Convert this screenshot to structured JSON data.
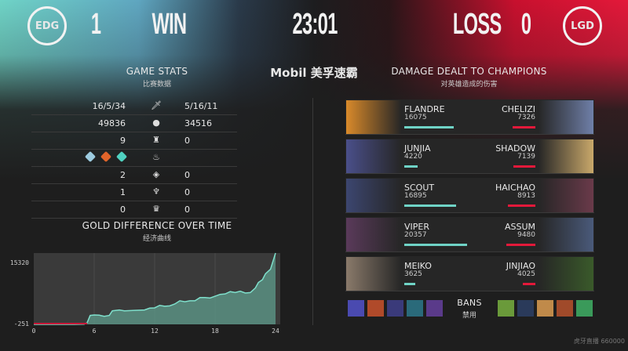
{
  "header": {
    "left_team": "EDG",
    "left_score": "1",
    "left_result": "WIN",
    "time": "23:01",
    "right_result": "LOSS",
    "right_score": "0",
    "right_team": "LGD",
    "sponsor": "Mobil 美孚速霸"
  },
  "colors": {
    "blue_team": "#6fd3c6",
    "red_team": "#e3193a",
    "background": "#1e1e1e"
  },
  "game_stats": {
    "title": "GAME STATS",
    "subtitle": "比赛数据",
    "rows": [
      {
        "icon": "kda-sword-icon",
        "left": "16/5/34",
        "right": "5/16/11"
      },
      {
        "icon": "gold-icon",
        "left": "49836",
        "right": "34516"
      },
      {
        "icon": "tower-icon",
        "left": "9",
        "right": "0"
      },
      {
        "icon": "dragon-icon",
        "left": "",
        "right": "",
        "left_dragons": [
          "cloud-dragon-icon",
          "infernal-dragon-icon",
          "hextech-dragon-icon"
        ]
      },
      {
        "icon": "rift-herald-icon",
        "left": "2",
        "right": "0"
      },
      {
        "icon": "baron-icon",
        "left": "1",
        "right": "0"
      },
      {
        "icon": "elder-dragon-icon",
        "left": "0",
        "right": "0"
      }
    ]
  },
  "damage": {
    "title": "DAMAGE DEALT TO CHAMPIONS",
    "subtitle": "对英雄造成的伤害",
    "players": [
      {
        "left_name": "FLANDRE",
        "left_dmg": "16075",
        "right_name": "CHELIZI",
        "right_dmg": "7326"
      },
      {
        "left_name": "JUNJIA",
        "left_dmg": "4220",
        "right_name": "SHADOW",
        "right_dmg": "7139"
      },
      {
        "left_name": "SCOUT",
        "left_dmg": "16895",
        "right_name": "HAICHAO",
        "right_dmg": "8913"
      },
      {
        "left_name": "VIPER",
        "left_dmg": "20357",
        "right_name": "ASSUM",
        "right_dmg": "9480"
      },
      {
        "left_name": "MEIKO",
        "left_dmg": "3625",
        "right_name": "JINJIAO",
        "right_dmg": "4025"
      }
    ]
  },
  "bans": {
    "label": "BANS",
    "sublabel": "禁用"
  },
  "gold_chart": {
    "title": "GOLD DIFFERENCE OVER TIME",
    "subtitle": "经济曲线"
  },
  "chart_data": {
    "type": "area",
    "title": "GOLD DIFFERENCE OVER TIME",
    "ylim": [
      -251,
      15320
    ],
    "yticks": [
      "15320",
      "-251"
    ],
    "xticks": [
      "0",
      "6",
      "12",
      "18",
      "24"
    ],
    "xlim": [
      0,
      24
    ],
    "x": [
      0,
      2,
      4,
      5,
      5.3,
      5.6,
      6,
      6.5,
      7,
      7.5,
      7.8,
      8.5,
      9,
      10,
      11,
      11.5,
      12,
      12.5,
      13,
      13.5,
      14,
      14.5,
      15,
      15.5,
      16,
      16.5,
      17,
      17.5,
      18,
      18.5,
      19,
      19.5,
      20,
      20.5,
      21,
      21.5,
      22,
      22.3,
      22.7,
      23,
      23.5,
      24
    ],
    "y": [
      -251,
      -251,
      -251,
      -200,
      100,
      1700,
      1800,
      1750,
      1500,
      1700,
      2700,
      2900,
      2700,
      2800,
      2900,
      3300,
      3350,
      3900,
      3700,
      3800,
      4200,
      4900,
      4700,
      4900,
      4900,
      5600,
      5600,
      5500,
      5900,
      6300,
      6400,
      6900,
      6700,
      7000,
      6600,
      6700,
      7700,
      8900,
      9500,
      10800,
      11800,
      15320
    ]
  },
  "watermark": "虎牙直播 660000"
}
